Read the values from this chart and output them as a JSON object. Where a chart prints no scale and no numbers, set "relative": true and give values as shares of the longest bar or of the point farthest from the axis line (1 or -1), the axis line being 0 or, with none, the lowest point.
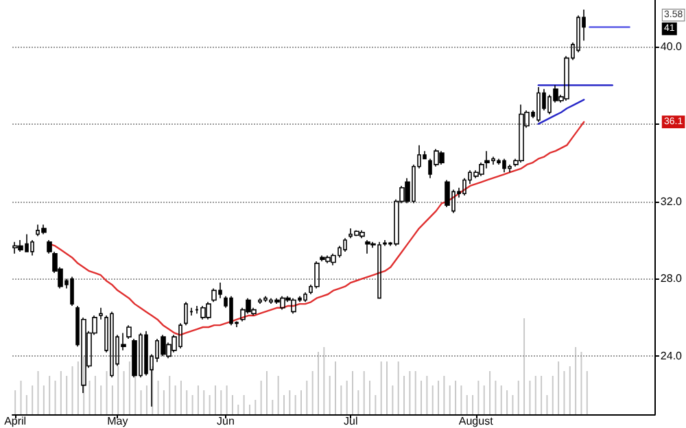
{
  "chart_data": [
    {
      "type": "candlestick",
      "categories": [
        "April",
        null,
        null,
        null,
        null,
        null,
        null,
        null,
        null,
        null,
        null,
        null,
        null,
        null,
        null,
        null,
        null,
        null,
        "May",
        null,
        null,
        null,
        null,
        null,
        null,
        null,
        null,
        null,
        null,
        null,
        null,
        null,
        null,
        null,
        null,
        null,
        null,
        "Jun",
        null,
        null,
        null,
        null,
        null,
        null,
        null,
        null,
        null,
        null,
        null,
        null,
        null,
        null,
        null,
        null,
        null,
        null,
        null,
        null,
        null,
        "Jul",
        null,
        null,
        null,
        null,
        null,
        null,
        null,
        null,
        null,
        null,
        null,
        null,
        null,
        null,
        null,
        null,
        null,
        null,
        null,
        null,
        null,
        "August",
        null,
        null,
        null,
        null,
        null,
        null,
        null,
        null,
        null,
        null,
        null,
        null,
        null,
        null,
        null,
        null,
        null,
        null,
        null,
        null,
        null,
        null,
        null,
        null,
        null,
        null,
        null,
        null,
        null,
        null,
        null
      ],
      "ohlc": [
        [
          29.6,
          29.9,
          29.3,
          29.7
        ],
        [
          29.7,
          30.0,
          29.4,
          29.5
        ],
        [
          29.8,
          30.3,
          29.4,
          29.4
        ],
        [
          29.4,
          30.0,
          29.2,
          29.9
        ],
        [
          30.3,
          30.8,
          30.2,
          30.5
        ],
        [
          30.6,
          30.8,
          30.3,
          30.4
        ],
        [
          29.9,
          30.0,
          29.3,
          29.4
        ],
        [
          29.3,
          29.4,
          28.3,
          28.4
        ],
        [
          28.5,
          28.6,
          27.5,
          27.6
        ],
        [
          27.9,
          28.0,
          27.5,
          27.7
        ],
        [
          28.0,
          28.1,
          26.6,
          26.7
        ],
        [
          26.5,
          26.6,
          24.5,
          24.6
        ],
        [
          22.5,
          26.0,
          22.1,
          25.9
        ],
        [
          23.5,
          25.3,
          23.4,
          25.2
        ],
        [
          25.2,
          26.1,
          25.1,
          26.0
        ],
        [
          26.1,
          26.5,
          25.9,
          26.2
        ],
        [
          24.3,
          26.1,
          24.2,
          26.0
        ],
        [
          23.0,
          26.3,
          22.9,
          26.2
        ],
        [
          23.6,
          25.1,
          23.5,
          25.0
        ],
        [
          24.6,
          25.2,
          24.3,
          24.5
        ],
        [
          25.0,
          25.6,
          24.9,
          25.5
        ],
        [
          24.8,
          24.9,
          22.9,
          23.0
        ],
        [
          23.0,
          25.2,
          22.9,
          25.1
        ],
        [
          25.1,
          25.3,
          23.0,
          23.1
        ],
        [
          23.3,
          24.1,
          21.4,
          24.0
        ],
        [
          23.9,
          24.9,
          23.7,
          24.8
        ],
        [
          25.0,
          25.1,
          24.0,
          24.1
        ],
        [
          24.0,
          24.7,
          23.9,
          24.6
        ],
        [
          24.3,
          25.1,
          24.2,
          25.0
        ],
        [
          24.5,
          25.7,
          24.4,
          25.6
        ],
        [
          25.7,
          26.8,
          25.6,
          26.7
        ],
        [
          26.3,
          26.5,
          26.1,
          26.3
        ],
        [
          26.4,
          26.6,
          26.2,
          26.4
        ],
        [
          26.0,
          26.6,
          25.9,
          26.5
        ],
        [
          26.0,
          26.8,
          25.9,
          26.7
        ],
        [
          26.9,
          27.5,
          26.8,
          27.4
        ],
        [
          27.4,
          27.8,
          27.0,
          27.2
        ],
        [
          27.0,
          27.1,
          26.5,
          26.6
        ],
        [
          27.0,
          27.1,
          25.6,
          25.7
        ],
        [
          25.7,
          25.8,
          25.5,
          25.75
        ],
        [
          25.9,
          26.5,
          25.8,
          26.4
        ],
        [
          26.9,
          27.0,
          26.2,
          26.3
        ],
        [
          26.2,
          26.5,
          26.1,
          26.4
        ],
        [
          26.8,
          27.0,
          26.7,
          26.9
        ],
        [
          26.9,
          27.1,
          26.8,
          27.0
        ],
        [
          26.8,
          27.0,
          26.7,
          26.9
        ],
        [
          26.9,
          27.0,
          26.7,
          26.8
        ],
        [
          26.5,
          27.1,
          26.4,
          27.0
        ],
        [
          27.0,
          27.1,
          26.8,
          26.9
        ],
        [
          26.3,
          27.0,
          26.2,
          26.9
        ],
        [
          27.0,
          27.1,
          26.8,
          26.9
        ],
        [
          26.9,
          27.3,
          26.8,
          27.2
        ],
        [
          27.3,
          27.7,
          27.2,
          27.6
        ],
        [
          27.6,
          28.9,
          27.5,
          28.8
        ],
        [
          29.1,
          29.2,
          28.9,
          29.0
        ],
        [
          28.9,
          29.2,
          28.8,
          29.1
        ],
        [
          28.85,
          29.3,
          28.7,
          29.2
        ],
        [
          29.2,
          29.7,
          29.1,
          29.6
        ],
        [
          29.5,
          30.1,
          29.4,
          30.0
        ],
        [
          30.2,
          30.6,
          30.1,
          30.3
        ],
        [
          30.25,
          30.5,
          30.2,
          30.45
        ],
        [
          30.2,
          30.5,
          30.1,
          30.4
        ],
        [
          29.9,
          30.0,
          29.3,
          29.8
        ],
        [
          29.8,
          29.9,
          29.6,
          29.75
        ],
        [
          27.0,
          29.9,
          27.0,
          29.75
        ],
        [
          29.8,
          30.0,
          29.7,
          29.85
        ],
        [
          29.8,
          29.9,
          29.7,
          29.85
        ],
        [
          29.8,
          32.1,
          29.7,
          32.0
        ],
        [
          32.0,
          32.8,
          31.9,
          32.7
        ],
        [
          33.0,
          33.2,
          31.9,
          32.0
        ],
        [
          32.0,
          33.9,
          31.9,
          33.8
        ],
        [
          33.8,
          34.9,
          33.7,
          34.4
        ],
        [
          34.4,
          34.6,
          34.2,
          34.2
        ],
        [
          34.1,
          34.2,
          33.2,
          33.4
        ],
        [
          33.9,
          34.7,
          33.8,
          34.6
        ],
        [
          34.5,
          34.6,
          33.9,
          34.0
        ],
        [
          33.0,
          33.1,
          31.7,
          31.8
        ],
        [
          31.5,
          32.6,
          31.4,
          32.5
        ],
        [
          32.5,
          32.7,
          32.2,
          32.4
        ],
        [
          32.4,
          33.2,
          32.3,
          33.1
        ],
        [
          33.1,
          33.6,
          32.9,
          33.5
        ],
        [
          33.3,
          33.6,
          33.2,
          33.5
        ],
        [
          33.4,
          34.0,
          33.3,
          33.9
        ],
        [
          34.1,
          34.6,
          33.7,
          34.0
        ],
        [
          34.1,
          34.3,
          33.9,
          34.2
        ],
        [
          34.1,
          34.2,
          33.9,
          34.0
        ],
        [
          34.1,
          34.2,
          33.5,
          33.7
        ],
        [
          33.7,
          33.9,
          33.5,
          33.8
        ],
        [
          33.9,
          34.2,
          33.8,
          34.1
        ],
        [
          34.1,
          37.0,
          34.0,
          36.5
        ],
        [
          35.9,
          36.7,
          35.8,
          36.6
        ],
        [
          36.6,
          36.7,
          36.3,
          36.4
        ],
        [
          36.2,
          37.9,
          36.1,
          37.6
        ],
        [
          37.6,
          37.8,
          36.7,
          36.8
        ],
        [
          36.6,
          37.5,
          36.5,
          37.4
        ],
        [
          37.8,
          38.0,
          37.1,
          37.2
        ],
        [
          37.2,
          37.5,
          37.1,
          37.4
        ],
        [
          37.3,
          39.5,
          37.2,
          39.4
        ],
        [
          39.4,
          40.2,
          39.3,
          40.1
        ],
        [
          39.8,
          41.6,
          39.7,
          41.5
        ],
        [
          41.5,
          41.9,
          40.3,
          41.0
        ],
        null,
        null,
        null,
        null,
        null,
        null,
        null,
        null,
        null,
        null,
        null,
        null
      ],
      "series": [
        {
          "type": "line",
          "color": "#e03030",
          "values": [
            null,
            null,
            null,
            null,
            null,
            null,
            29.8,
            29.7,
            29.5,
            29.3,
            29.1,
            28.8,
            28.6,
            28.4,
            28.3,
            28.2,
            27.9,
            27.7,
            27.4,
            27.2,
            27.0,
            26.7,
            26.5,
            26.3,
            26.1,
            25.9,
            25.6,
            25.4,
            25.2,
            25.1,
            25.2,
            25.3,
            25.4,
            25.5,
            25.5,
            25.6,
            25.6,
            25.7,
            25.8,
            25.9,
            26.0,
            26.1,
            26.1,
            26.2,
            26.3,
            26.4,
            26.5,
            26.5,
            26.6,
            26.6,
            26.7,
            26.7,
            26.8,
            27.0,
            27.1,
            27.2,
            27.4,
            27.5,
            27.6,
            27.8,
            27.9,
            28.0,
            28.1,
            28.2,
            28.3,
            28.4,
            28.6,
            29.0,
            29.4,
            29.8,
            30.2,
            30.6,
            30.9,
            31.2,
            31.5,
            31.9,
            32.0,
            32.2,
            32.4,
            32.6,
            32.8,
            32.9,
            33.0,
            33.1,
            33.2,
            33.3,
            33.4,
            33.5,
            33.6,
            33.7,
            33.9,
            34.0,
            34.2,
            34.3,
            34.5,
            34.6,
            34.75,
            34.9,
            35.3,
            35.7,
            36.1,
            null,
            null,
            null,
            null,
            null,
            null,
            null,
            null,
            null,
            null,
            null,
            null
          ]
        },
        {
          "type": "line",
          "color": "#2828c8",
          "values": [
            null,
            null,
            null,
            null,
            null,
            null,
            null,
            null,
            null,
            null,
            null,
            null,
            null,
            null,
            null,
            null,
            null,
            null,
            null,
            null,
            null,
            null,
            null,
            null,
            null,
            null,
            null,
            null,
            null,
            null,
            null,
            null,
            null,
            null,
            null,
            null,
            null,
            null,
            null,
            null,
            null,
            null,
            null,
            null,
            null,
            null,
            null,
            null,
            null,
            null,
            null,
            null,
            null,
            null,
            null,
            null,
            null,
            null,
            null,
            null,
            null,
            null,
            null,
            null,
            null,
            null,
            null,
            null,
            null,
            null,
            null,
            null,
            null,
            null,
            null,
            null,
            null,
            null,
            null,
            null,
            null,
            null,
            null,
            null,
            null,
            null,
            null,
            null,
            null,
            null,
            null,
            null,
            38.0,
            38.0,
            38.0,
            38.0,
            38.0,
            38.0,
            38.0,
            38.0,
            38.0,
            38.0,
            38.0,
            38.0,
            38.0,
            38.0,
            null,
            null,
            null,
            null,
            null,
            null,
            null
          ]
        },
        {
          "type": "line",
          "color": "#2828c8",
          "values": [
            null,
            null,
            null,
            null,
            null,
            null,
            null,
            null,
            null,
            null,
            null,
            null,
            null,
            null,
            null,
            null,
            null,
            null,
            null,
            null,
            null,
            null,
            null,
            null,
            null,
            null,
            null,
            null,
            null,
            null,
            null,
            null,
            null,
            null,
            null,
            null,
            null,
            null,
            null,
            null,
            null,
            null,
            null,
            null,
            null,
            null,
            null,
            null,
            null,
            null,
            null,
            null,
            null,
            null,
            null,
            null,
            null,
            null,
            null,
            null,
            null,
            null,
            null,
            null,
            null,
            null,
            null,
            null,
            null,
            null,
            null,
            null,
            null,
            null,
            null,
            null,
            null,
            null,
            null,
            null,
            null,
            null,
            null,
            null,
            null,
            null,
            null,
            null,
            null,
            null,
            null,
            null,
            36.0,
            36.15,
            36.3,
            36.45,
            36.6,
            36.8,
            36.95,
            37.1,
            37.25,
            null,
            null,
            null,
            null,
            null,
            null,
            null,
            null,
            null,
            null,
            null,
            null
          ]
        },
        {
          "type": "line",
          "color": "#5a5ae6",
          "values": [
            null,
            null,
            null,
            null,
            null,
            null,
            null,
            null,
            null,
            null,
            null,
            null,
            null,
            null,
            null,
            null,
            null,
            null,
            null,
            null,
            null,
            null,
            null,
            null,
            null,
            null,
            null,
            null,
            null,
            null,
            null,
            null,
            null,
            null,
            null,
            null,
            null,
            null,
            null,
            null,
            null,
            null,
            null,
            null,
            null,
            null,
            null,
            null,
            null,
            null,
            null,
            null,
            null,
            null,
            null,
            null,
            null,
            null,
            null,
            null,
            null,
            null,
            null,
            null,
            null,
            null,
            null,
            null,
            null,
            null,
            null,
            null,
            null,
            null,
            null,
            null,
            null,
            null,
            null,
            null,
            null,
            null,
            null,
            null,
            null,
            null,
            null,
            null,
            null,
            null,
            null,
            null,
            null,
            null,
            null,
            null,
            null,
            null,
            null,
            null,
            null,
            41.0,
            41.0,
            41.0,
            41.0,
            41.0,
            41.0,
            41.0,
            41.0,
            null,
            null,
            null,
            null
          ]
        }
      ],
      "ylim": [
        21.0,
        42.4
      ],
      "yticks": [
        {
          "value": 24,
          "label": "24.0"
        },
        {
          "value": 28,
          "label": "28.0"
        },
        {
          "value": 32,
          "label": "32.0"
        },
        {
          "value": 36,
          "label": null
        },
        {
          "value": 40,
          "label": "40.0"
        }
      ],
      "grid": "y",
      "marker": "none",
      "line_style": "solid",
      "annotations": [
        "3.58",
        "41",
        "36.1"
      ]
    },
    {
      "type": "bar",
      "relative": true,
      "color": "#c8c8c8",
      "categories": [
        null,
        null,
        null,
        null,
        null,
        null,
        null,
        null,
        null,
        null,
        null,
        null,
        null,
        null,
        null,
        null,
        null,
        null,
        null,
        null,
        null,
        null,
        null,
        null,
        null,
        null,
        null,
        null,
        null,
        null,
        null,
        null,
        null,
        null,
        null,
        null,
        null,
        null,
        null,
        null,
        null,
        null,
        null,
        null,
        null,
        null,
        null,
        null,
        null,
        null,
        null,
        null,
        null,
        null,
        null,
        null,
        null,
        null,
        null,
        null,
        null,
        null,
        null,
        null,
        null,
        null,
        null,
        null,
        null,
        null,
        null,
        null,
        null,
        null,
        null,
        null,
        null,
        null,
        null,
        null,
        null,
        null,
        null,
        null,
        null,
        null,
        null,
        null,
        null,
        null,
        null,
        null,
        null,
        null,
        null,
        null,
        null,
        null,
        null,
        null,
        null,
        null,
        null,
        null,
        null,
        null,
        null,
        null,
        null,
        null,
        null,
        null,
        null
      ],
      "values": [
        0.25,
        0.35,
        0.2,
        0.3,
        0.45,
        0.3,
        0.4,
        0.35,
        0.45,
        0.4,
        0.5,
        0.55,
        0.6,
        0.35,
        0.4,
        0.3,
        0.45,
        0.3,
        0.5,
        0.45,
        0.55,
        0.4,
        0.25,
        0.3,
        0.5,
        0.35,
        0.25,
        0.4,
        0.3,
        0.35,
        0.25,
        0.2,
        0.3,
        0.25,
        0.2,
        0.3,
        0.25,
        0.3,
        0.2,
        0.1,
        0.2,
        0.1,
        0.15,
        0.35,
        0.45,
        0.15,
        0.4,
        0.2,
        0.25,
        0.2,
        0.25,
        0.35,
        0.45,
        0.65,
        0.7,
        0.4,
        0.55,
        0.3,
        0.35,
        0.45,
        0.25,
        0.45,
        0.35,
        0.2,
        0.55,
        0.55,
        0.3,
        0.55,
        0.4,
        0.45,
        0.45,
        0.35,
        0.4,
        0.3,
        0.35,
        0.4,
        0.3,
        0.35,
        0.3,
        0.2,
        0.2,
        0.35,
        0.3,
        0.45,
        0.35,
        0.3,
        0.25,
        0.2,
        0.35,
        1.0,
        0.35,
        0.4,
        0.4,
        0.2,
        0.4,
        0.55,
        0.45,
        0.5,
        0.7,
        0.65,
        0.45,
        null,
        null,
        null,
        null,
        null,
        null,
        null,
        null,
        null,
        null,
        null,
        null
      ]
    }
  ]
}
